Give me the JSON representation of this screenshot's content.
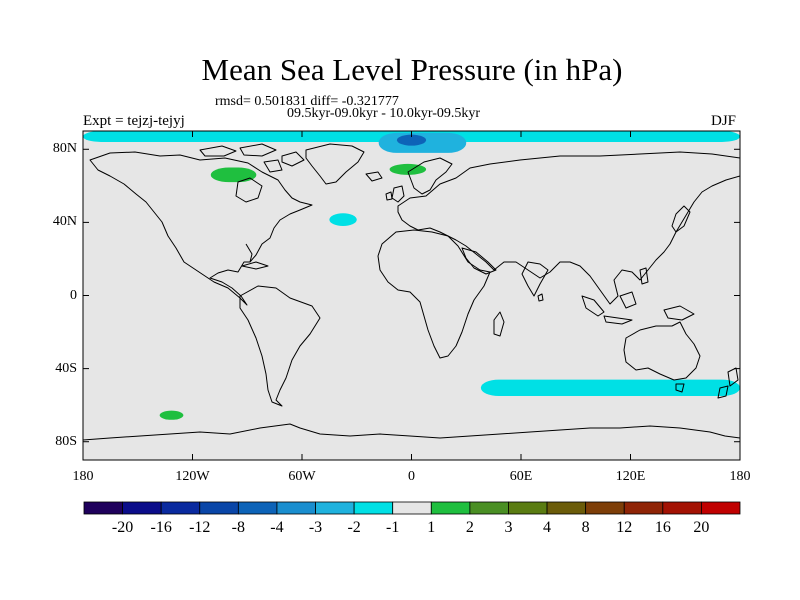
{
  "title": "Mean Sea Level Pressure (in hPa)",
  "stats_line": "rmsd= 0.501831 diff= -0.321777",
  "period_line": "09.5kyr-09.0kyr - 10.0kyr-09.5kyr",
  "experiment_label": "Expt = tejzj-tejyj",
  "season_label": "DJF",
  "lat_axis": {
    "ticks": [
      {
        "value": 80,
        "label": "80N"
      },
      {
        "value": 40,
        "label": "40N"
      },
      {
        "value": 0,
        "label": "0"
      },
      {
        "value": -40,
        "label": "40S"
      },
      {
        "value": -80,
        "label": "80S"
      }
    ]
  },
  "lon_axis": {
    "ticks": [
      {
        "value": -180,
        "label": "180"
      },
      {
        "value": -120,
        "label": "120W"
      },
      {
        "value": -60,
        "label": "60W"
      },
      {
        "value": 0,
        "label": "0"
      },
      {
        "value": 60,
        "label": "60E"
      },
      {
        "value": 120,
        "label": "120E"
      },
      {
        "value": 180,
        "label": "180"
      }
    ]
  },
  "colorbar": {
    "colors": [
      "#1f005c",
      "#0b0d8a",
      "#0a2a9f",
      "#0a46a8",
      "#0d63b8",
      "#1a8ecf",
      "#1fb2de",
      "#00e0e5",
      "#e6e6e6",
      "#1fbf3f",
      "#4a8f24",
      "#5a7c12",
      "#6b5c0a",
      "#7d3e08",
      "#8f2406",
      "#a31203",
      "#c00000"
    ],
    "labels": [
      "-20",
      "-16",
      "-12",
      "-8",
      "-4",
      "-3",
      "-2",
      "-1",
      "1",
      "2",
      "3",
      "4",
      "8",
      "12",
      "16",
      "20"
    ]
  },
  "map_colors": {
    "background": "#e6e6e6",
    "light_negative": "#00e0e5",
    "medium_negative": "#1fb2de",
    "strong_negative": "#0d63b8",
    "deep_negative": "#0a2a9f",
    "light_positive": "#1fbf3f",
    "coastline": "#000000"
  },
  "anomaly_regions": [
    {
      "name": "arctic-negative-band",
      "level": "light_negative",
      "lon": [
        -180,
        180
      ],
      "lat": [
        84,
        90
      ]
    },
    {
      "name": "arctic-negative-core",
      "level": "medium_negative",
      "lon": [
        -18,
        30
      ],
      "lat": [
        78,
        89
      ]
    },
    {
      "name": "arctic-negative-peak",
      "level": "strong_negative",
      "lon": [
        -8,
        8
      ],
      "lat": [
        82,
        88
      ]
    },
    {
      "name": "canada-positive",
      "level": "light_positive",
      "lon": [
        -110,
        -85
      ],
      "lat": [
        62,
        70
      ]
    },
    {
      "name": "scandinavia-positive",
      "level": "light_positive",
      "lon": [
        -12,
        8
      ],
      "lat": [
        66,
        72
      ]
    },
    {
      "name": "north-atlantic-negative",
      "level": "light_negative",
      "lon": [
        -45,
        -30
      ],
      "lat": [
        38,
        45
      ]
    },
    {
      "name": "indian-ocean-negative-band",
      "level": "light_negative",
      "lon": [
        38,
        180
      ],
      "lat": [
        -55,
        -46
      ]
    },
    {
      "name": "south-pacific-positive",
      "level": "light_positive",
      "lon": [
        -138,
        -125
      ],
      "lat": [
        -68,
        -63
      ]
    }
  ]
}
